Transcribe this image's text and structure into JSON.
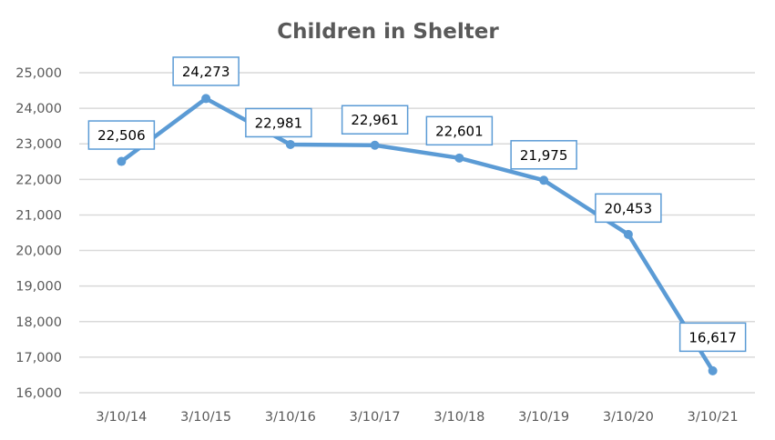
{
  "chart_data": {
    "type": "line",
    "title": "Children in Shelter",
    "xlabel": "",
    "ylabel": "",
    "categories": [
      "3/10/14",
      "3/10/15",
      "3/10/16",
      "3/10/17",
      "3/10/18",
      "3/10/19",
      "3/10/20",
      "3/10/21"
    ],
    "series": [
      {
        "name": "Children in Shelter",
        "values": [
          22506,
          24273,
          22981,
          22961,
          22601,
          21975,
          20453,
          16617
        ],
        "color": "#5B9BD5"
      }
    ],
    "data_labels": [
      "22,506",
      "24,273",
      "22,981",
      "22,961",
      "22,601",
      "21,975",
      "20,453",
      "16,617"
    ],
    "ylim": [
      16000,
      25000
    ],
    "yticks": [
      16000,
      17000,
      18000,
      19000,
      20000,
      21000,
      22000,
      23000,
      24000,
      25000
    ],
    "ytick_labels": [
      "16,000",
      "17,000",
      "18,000",
      "19,000",
      "20,000",
      "21,000",
      "22,000",
      "23,000",
      "24,000",
      "25,000"
    ],
    "grid": true,
    "legend": "none",
    "colors": {
      "line": "#5B9BD5",
      "grid": "#D9D9D9",
      "text": "#595959",
      "label_border": "#5B9BD5"
    }
  }
}
